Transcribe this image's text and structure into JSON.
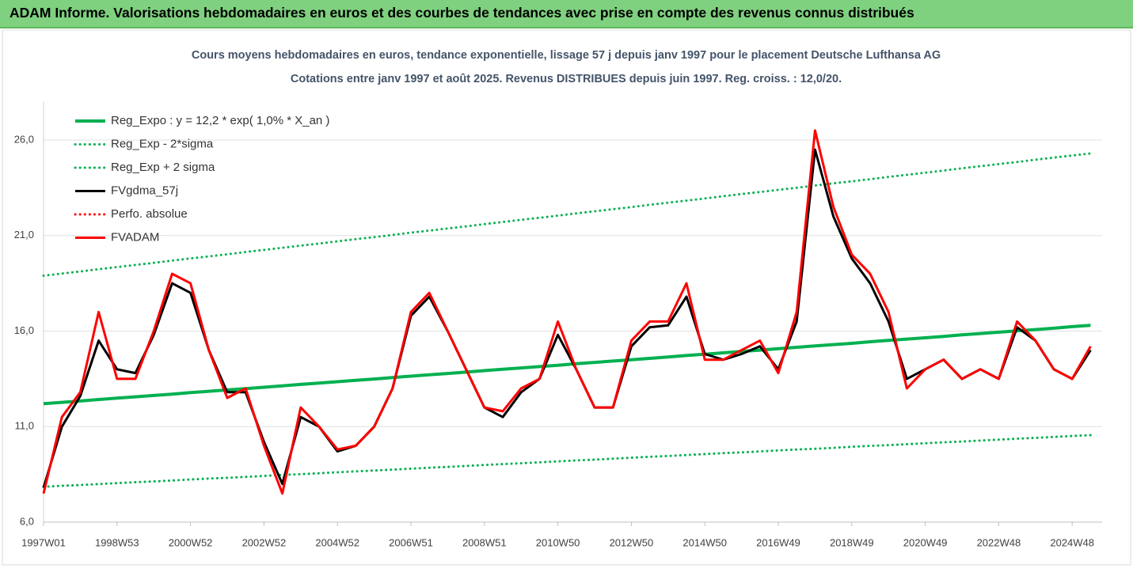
{
  "header": {
    "title": "ADAM Informe. Valorisations hebdomadaires en euros et des courbes de tendances avec prise en compte des revenus connus distribués"
  },
  "chart_data": {
    "type": "line",
    "title": "Cours moyens hebdomadaires en euros, tendance exponentielle, lissage 57 j depuis janv 1997 pour le placement Deutsche Lufthansa AG",
    "subtitle": "Cotations entre janv 1997 et août 2025. Revenus DISTRIBUES depuis juin 1997. Reg. croiss. : 12,0/20.",
    "categories": [
      "1997W01",
      null,
      null,
      null,
      "1998W53",
      null,
      null,
      null,
      "2000W52",
      null,
      null,
      null,
      "2002W52",
      null,
      null,
      null,
      "2004W52",
      null,
      null,
      null,
      "2006W51",
      null,
      null,
      null,
      "2008W51",
      null,
      null,
      null,
      "2010W50",
      null,
      null,
      null,
      "2012W50",
      null,
      null,
      null,
      "2014W50",
      null,
      null,
      null,
      "2016W49",
      null,
      null,
      null,
      "2018W49",
      null,
      null,
      null,
      "2020W49",
      null,
      null,
      null,
      "2022W48",
      null,
      null,
      null,
      "2024W48",
      null
    ],
    "ylim": [
      6,
      28
    ],
    "yticks": [
      {
        "value": 6,
        "label": "6,0"
      },
      {
        "value": 11,
        "label": "11,0"
      },
      {
        "value": 16,
        "label": "16,0"
      },
      {
        "value": 21,
        "label": "21,0"
      },
      {
        "value": 26,
        "label": "26,0"
      }
    ],
    "grid": true,
    "legend": "top-left",
    "series": [
      {
        "name": "Reg_Expo : y = 12,2 * exp( 1,0% *  X_an )",
        "color": "#00b050",
        "style": "solid",
        "values": [
          12.2,
          12.27,
          12.34,
          12.42,
          12.49,
          12.56,
          12.63,
          12.7,
          12.78,
          12.85,
          12.92,
          12.99,
          13.06,
          13.13,
          13.21,
          13.28,
          13.35,
          13.42,
          13.49,
          13.57,
          13.64,
          13.71,
          13.78,
          13.85,
          13.93,
          14.0,
          14.07,
          14.14,
          14.21,
          14.29,
          14.36,
          14.43,
          14.5,
          14.57,
          14.64,
          14.72,
          14.79,
          14.86,
          14.93,
          15.0,
          15.08,
          15.15,
          15.22,
          15.29,
          15.36,
          15.44,
          15.51,
          15.58,
          15.65,
          15.72,
          15.8,
          15.87,
          15.94,
          16.01,
          16.08,
          16.15,
          16.23,
          16.3
        ]
      },
      {
        "name": "Reg_Exp - 2*sigma",
        "color": "#00b050",
        "style": "dotted",
        "values": [
          7.85,
          7.9,
          7.94,
          7.99,
          8.04,
          8.09,
          8.13,
          8.18,
          8.23,
          8.28,
          8.32,
          8.37,
          8.42,
          8.47,
          8.51,
          8.56,
          8.61,
          8.66,
          8.7,
          8.75,
          8.8,
          8.85,
          8.89,
          8.94,
          8.99,
          9.04,
          9.08,
          9.13,
          9.18,
          9.23,
          9.27,
          9.32,
          9.37,
          9.42,
          9.46,
          9.51,
          9.56,
          9.61,
          9.65,
          9.7,
          9.75,
          9.8,
          9.84,
          9.89,
          9.94,
          9.99,
          10.03,
          10.08,
          10.13,
          10.18,
          10.22,
          10.27,
          10.32,
          10.37,
          10.41,
          10.46,
          10.51,
          10.55
        ]
      },
      {
        "name": "Reg_Exp + 2 sigma",
        "color": "#00b050",
        "style": "dotted",
        "values": [
          18.9,
          19.01,
          19.12,
          19.24,
          19.35,
          19.46,
          19.57,
          19.69,
          19.8,
          19.91,
          20.02,
          20.14,
          20.25,
          20.36,
          20.47,
          20.58,
          20.7,
          20.81,
          20.92,
          21.03,
          21.15,
          21.26,
          21.37,
          21.48,
          21.6,
          21.71,
          21.82,
          21.93,
          22.04,
          22.16,
          22.27,
          22.38,
          22.49,
          22.61,
          22.72,
          22.83,
          22.94,
          23.06,
          23.17,
          23.28,
          23.39,
          23.5,
          23.62,
          23.73,
          23.84,
          23.95,
          24.07,
          24.18,
          24.29,
          24.4,
          24.52,
          24.63,
          24.74,
          24.85,
          24.97,
          25.08,
          25.19,
          25.3
        ]
      },
      {
        "name": "FVgdma_57j",
        "color": "#000000",
        "style": "solid",
        "values": [
          7.8,
          11,
          12.6,
          15.5,
          14,
          13.8,
          15.8,
          18.5,
          18,
          15,
          12.8,
          12.8,
          10.2,
          8,
          11.5,
          11,
          9.7,
          10,
          11,
          13,
          16.8,
          17.8,
          16,
          14,
          12,
          11.5,
          12.8,
          13.5,
          15.8,
          14,
          12,
          12,
          15.2,
          16.2,
          16.3,
          17.8,
          14.8,
          14.5,
          14.8,
          15.2,
          14,
          16.5,
          25.5,
          22,
          19.8,
          18.5,
          16.5,
          13.5,
          14,
          14.5,
          13.5,
          14,
          13.5,
          16.2,
          15.5,
          14,
          13.5,
          15
        ]
      },
      {
        "name": "Perfo. absolue",
        "color": "#ff0000",
        "style": "dotted",
        "values": [
          null,
          null,
          null,
          null,
          null,
          null,
          null,
          null,
          null,
          null,
          null,
          null,
          null,
          null,
          null,
          null,
          null,
          null,
          null,
          null,
          null,
          null,
          null,
          null,
          null,
          null,
          null,
          null,
          null,
          null,
          null,
          null,
          null,
          null,
          null,
          null,
          null,
          null,
          null,
          null,
          null,
          null,
          null,
          null,
          null,
          null,
          null,
          null,
          null,
          null,
          null,
          null,
          null,
          null,
          null,
          null,
          null,
          null
        ]
      },
      {
        "name": "FVADAM",
        "color": "#ff0000",
        "style": "solid",
        "values": [
          7.5,
          11.5,
          12.8,
          17,
          13.5,
          13.5,
          16,
          19,
          18.5,
          15,
          12.5,
          13,
          10,
          7.5,
          12,
          11,
          9.8,
          10,
          11,
          13,
          17,
          18,
          16,
          14,
          12,
          11.8,
          13,
          13.5,
          16.5,
          14,
          12,
          12,
          15.5,
          16.5,
          16.5,
          18.5,
          14.5,
          14.5,
          15,
          15.5,
          13.8,
          17,
          26.5,
          22.5,
          20,
          19,
          17,
          13,
          14,
          14.5,
          13.5,
          14,
          13.5,
          16.5,
          15.5,
          14,
          13.5,
          15.2
        ]
      }
    ]
  }
}
